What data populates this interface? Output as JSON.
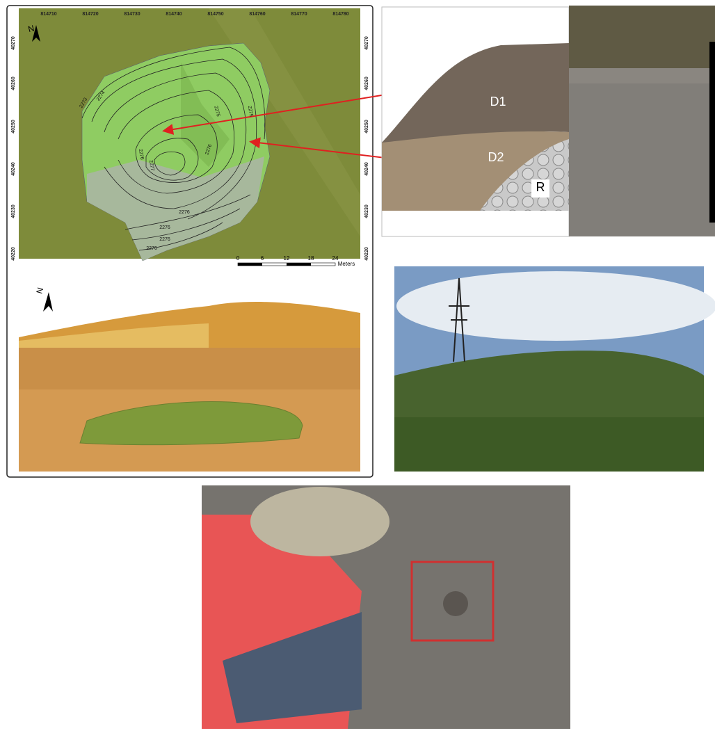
{
  "map": {
    "north": "N",
    "x_labels": [
      "814710",
      "814720",
      "814730",
      "814740",
      "814750",
      "814760",
      "814770",
      "814780"
    ],
    "y_labels": [
      "40270",
      "40260",
      "40250",
      "40240",
      "40230",
      "40220"
    ],
    "contour_labels": [
      "2273",
      "2274",
      "2275",
      "2275",
      "2276",
      "2276",
      "2277",
      "2276",
      "2276",
      "2276",
      "2276"
    ],
    "scale_labels": [
      "0",
      "6",
      "12",
      "18",
      "24"
    ],
    "scale_unit": "Meters"
  },
  "view3d": {
    "north": "N"
  },
  "section": {
    "layers": [
      "D1",
      "D2",
      "R"
    ]
  }
}
